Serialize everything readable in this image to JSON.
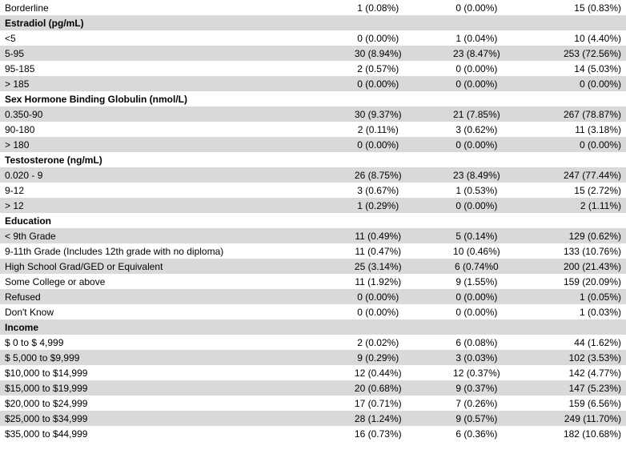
{
  "rows": [
    {
      "type": "data",
      "shade": false,
      "label": "Borderline",
      "c1": "1 (0.08%)",
      "c2": "0 (0.00%)",
      "c3": "15 (0.83%)"
    },
    {
      "type": "header",
      "shade": true,
      "label": "Estradiol (pg/mL)"
    },
    {
      "type": "data",
      "shade": false,
      "label": "<5",
      "c1": "0 (0.00%)",
      "c2": "1 (0.04%)",
      "c3": "10 (4.40%)"
    },
    {
      "type": "data",
      "shade": true,
      "label": "5-95",
      "c1": "30 (8.94%)",
      "c2": "23 (8.47%)",
      "c3": "253 (72.56%)"
    },
    {
      "type": "data",
      "shade": false,
      "label": "95-185",
      "c1": "2 (0.57%)",
      "c2": "0 (0.00%)",
      "c3": "14 (5.03%)"
    },
    {
      "type": "data",
      "shade": true,
      "label": "> 185",
      "c1": "0 (0.00%)",
      "c2": "0 (0.00%)",
      "c3": "0 (0.00%)"
    },
    {
      "type": "header",
      "shade": false,
      "label": "Sex Hormone Binding Globulin (nmol/L)"
    },
    {
      "type": "data",
      "shade": true,
      "label": "0.350-90",
      "c1": "30 (9.37%)",
      "c2": "21 (7.85%)",
      "c3": "267 (78.87%)"
    },
    {
      "type": "data",
      "shade": false,
      "label": "90-180",
      "c1": "2 (0.11%)",
      "c2": "3 (0.62%)",
      "c3": "11 (3.18%)"
    },
    {
      "type": "data",
      "shade": true,
      "label": "> 180",
      "c1": "0 (0.00%)",
      "c2": "0 (0.00%)",
      "c3": "0 (0.00%)"
    },
    {
      "type": "header",
      "shade": false,
      "label": "Testosterone (ng/mL)"
    },
    {
      "type": "data",
      "shade": true,
      "label": "0.020 - 9",
      "c1": "26 (8.75%)",
      "c2": "23 (8.49%)",
      "c3": "247 (77.44%)"
    },
    {
      "type": "data",
      "shade": false,
      "label": "9-12",
      "c1": "3 (0.67%)",
      "c2": "1 (0.53%)",
      "c3": "15 (2.72%)"
    },
    {
      "type": "data",
      "shade": true,
      "label": "> 12",
      "c1": "1 (0.29%)",
      "c2": "0 (0.00%)",
      "c3": "2 (1.11%)"
    },
    {
      "type": "header",
      "shade": false,
      "label": "Education"
    },
    {
      "type": "data",
      "shade": true,
      "label": "< 9th Grade",
      "c1": "11 (0.49%)",
      "c2": "5 (0.14%)",
      "c3": "129 (0.62%)"
    },
    {
      "type": "data",
      "shade": false,
      "label": "9-11th Grade (Includes 12th grade with no diploma)",
      "c1": "11 (0.47%)",
      "c2": "10 (0.46%)",
      "c3": "133 (10.76%)"
    },
    {
      "type": "data",
      "shade": true,
      "label": "High School Grad/GED or Equivalent",
      "c1": "25 (3.14%)",
      "c2": "6 (0.74%0",
      "c3": "200 (21.43%)"
    },
    {
      "type": "data",
      "shade": false,
      "label": "Some College or above",
      "c1": "11 (1.92%)",
      "c2": "9 (1.55%)",
      "c3": "159 (20.09%)"
    },
    {
      "type": "data",
      "shade": true,
      "label": "Refused",
      "c1": "0 (0.00%)",
      "c2": "0 (0.00%)",
      "c3": "1 (0.05%)"
    },
    {
      "type": "data",
      "shade": false,
      "label": "Don't Know",
      "c1": "0 (0.00%)",
      "c2": "0 (0.00%)",
      "c3": "1 (0.03%)"
    },
    {
      "type": "header",
      "shade": true,
      "label": "Income"
    },
    {
      "type": "data",
      "shade": false,
      "label": "$ 0 to $ 4,999",
      "c1": "2 (0.02%)",
      "c2": "6 (0.08%)",
      "c3": "44 (1.62%)"
    },
    {
      "type": "data",
      "shade": true,
      "label": "$ 5,000 to $9,999",
      "c1": "9 (0.29%)",
      "c2": "3 (0.03%)",
      "c3": "102 (3.53%)"
    },
    {
      "type": "data",
      "shade": false,
      "label": "$10,000 to $14,999",
      "c1": "12 (0.44%)",
      "c2": "12 (0.37%)",
      "c3": "142 (4.77%)"
    },
    {
      "type": "data",
      "shade": true,
      "label": "$15,000 to $19,999",
      "c1": "20 (0.68%)",
      "c2": "9 (0.37%)",
      "c3": "147 (5.23%)"
    },
    {
      "type": "data",
      "shade": false,
      "label": "$20,000 to $24,999",
      "c1": "17 (0.71%)",
      "c2": "7 (0.26%)",
      "c3": "159 (6.56%)"
    },
    {
      "type": "data",
      "shade": true,
      "label": "$25,000 to $34,999",
      "c1": "28 (1.24%)",
      "c2": "9 (0.57%)",
      "c3": "249 (11.70%)"
    },
    {
      "type": "data",
      "shade": false,
      "label": "$35,000 to $44,999",
      "c1": "16 (0.73%)",
      "c2": "6 (0.36%)",
      "c3": "182 (10.68%)"
    }
  ],
  "colors": {
    "shade": "#d9d9d9",
    "background": "#ffffff",
    "text": "#000000"
  },
  "font_size_pt": 9
}
